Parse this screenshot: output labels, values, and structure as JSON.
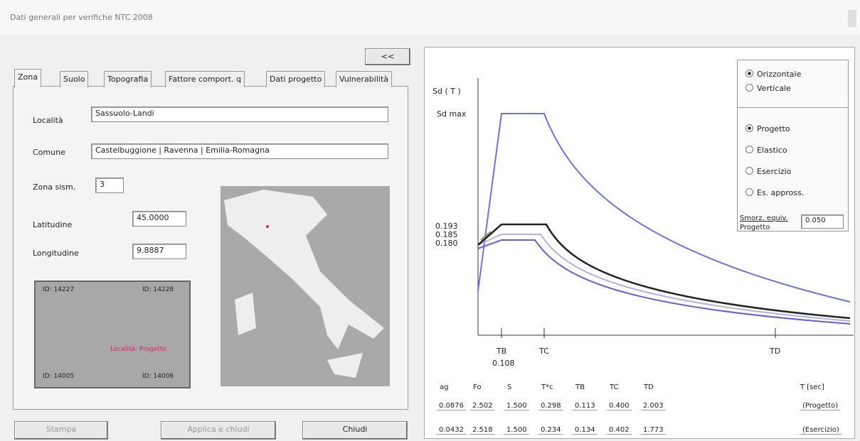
{
  "window": {
    "title": "Dati generali per verifiche NTC 2008"
  },
  "toolbar": {
    "collapse": "<<"
  },
  "tabs": [
    "Zona",
    "Suolo",
    "Topografia",
    "Fattore comport. q",
    "Dati progetto",
    "Vulnerabilità"
  ],
  "zone": {
    "fields": [
      {
        "label": "Località",
        "value": "Sassuolo-Landi"
      },
      {
        "label": "Comune",
        "value": "Castelbuggione | Ravenna | Emilia-Romagna"
      },
      {
        "label": "Zona sism.",
        "value": "3"
      },
      {
        "label": "Latitudine",
        "value": "45.0000"
      },
      {
        "label": "Longitudine",
        "value": "9.8887"
      }
    ],
    "grid": {
      "corners": [
        "ID: 14227",
        "ID: 14228",
        "ID: 14005",
        "ID: 14006"
      ],
      "point": "Località: Progetto"
    }
  },
  "buttons": [
    "Stampa",
    "Applica e chiudi",
    "Chiudi"
  ],
  "spectrum": {
    "y_label": "Sd ( T )",
    "y_max_label": "Sd max",
    "y_ticks": [
      "0.193",
      "0.185",
      "0.180"
    ],
    "x_ticks": [
      "TB",
      "TC",
      "TD"
    ],
    "tb_value": "0.108",
    "direction": [
      "Orizzontale",
      "Verticale"
    ],
    "spectrum_type": [
      "Progetto",
      "Elastico",
      "Esercizio",
      "Es. appross."
    ],
    "damping_label": [
      "Smorz. equiv.",
      "Progetto"
    ],
    "damping_value": "0.050"
  },
  "table": {
    "headers": [
      "ag",
      "Fo",
      "S",
      "T*c",
      "TB",
      "TC",
      "TD",
      "T [sec]"
    ],
    "rows": [
      [
        "0.0876",
        "2.502",
        "1.500",
        "0.298",
        "0.113",
        "0.400",
        "2.003",
        "(Progetto)"
      ],
      [
        "0.0432",
        "2.518",
        "1.500",
        "0.234",
        "0.134",
        "0.402",
        "1.773",
        "(Esercizio)"
      ]
    ]
  }
}
